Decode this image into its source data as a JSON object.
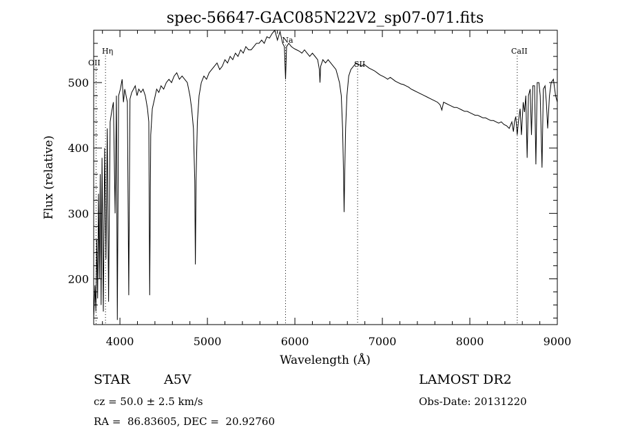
{
  "chart_data": {
    "type": "line",
    "title": "spec-56647-GAC085N22V2_sp07-071.fits",
    "xlabel": "Wavelength (Å)",
    "ylabel": "Flux (relative)",
    "xlim": [
      3700,
      9000
    ],
    "ylim": [
      130,
      580
    ],
    "x_ticks": [
      4000,
      5000,
      6000,
      7000,
      8000,
      9000
    ],
    "y_ticks": [
      200,
      300,
      400,
      500
    ],
    "grid": false,
    "series": [
      {
        "points": [
          [
            3700,
            140
          ],
          [
            3715,
            190
          ],
          [
            3725,
            150
          ],
          [
            3735,
            260
          ],
          [
            3745,
            170
          ],
          [
            3755,
            330
          ],
          [
            3765,
            200
          ],
          [
            3775,
            360
          ],
          [
            3785,
            160
          ],
          [
            3795,
            385
          ],
          [
            3810,
            150
          ],
          [
            3825,
            400
          ],
          [
            3840,
            230
          ],
          [
            3855,
            430
          ],
          [
            3870,
            165
          ],
          [
            3888,
            440
          ],
          [
            3905,
            455
          ],
          [
            3925,
            470
          ],
          [
            3945,
            300
          ],
          [
            3960,
            480
          ],
          [
            3970,
            137
          ],
          [
            3985,
            480
          ],
          [
            4005,
            490
          ],
          [
            4025,
            505
          ],
          [
            4040,
            470
          ],
          [
            4055,
            490
          ],
          [
            4070,
            480
          ],
          [
            4085,
            470
          ],
          [
            4101,
            175
          ],
          [
            4115,
            475
          ],
          [
            4135,
            485
          ],
          [
            4155,
            490
          ],
          [
            4175,
            495
          ],
          [
            4195,
            480
          ],
          [
            4215,
            490
          ],
          [
            4240,
            485
          ],
          [
            4265,
            490
          ],
          [
            4290,
            480
          ],
          [
            4315,
            460
          ],
          [
            4330,
            440
          ],
          [
            4340,
            175
          ],
          [
            4352,
            420
          ],
          [
            4370,
            460
          ],
          [
            4395,
            475
          ],
          [
            4420,
            490
          ],
          [
            4445,
            485
          ],
          [
            4470,
            495
          ],
          [
            4500,
            490
          ],
          [
            4530,
            500
          ],
          [
            4560,
            505
          ],
          [
            4590,
            500
          ],
          [
            4620,
            510
          ],
          [
            4650,
            515
          ],
          [
            4680,
            505
          ],
          [
            4710,
            510
          ],
          [
            4740,
            505
          ],
          [
            4770,
            500
          ],
          [
            4800,
            480
          ],
          [
            4820,
            460
          ],
          [
            4840,
            430
          ],
          [
            4855,
            350
          ],
          [
            4862,
            222
          ],
          [
            4870,
            350
          ],
          [
            4885,
            440
          ],
          [
            4905,
            480
          ],
          [
            4930,
            500
          ],
          [
            4960,
            510
          ],
          [
            4990,
            505
          ],
          [
            5020,
            515
          ],
          [
            5050,
            520
          ],
          [
            5080,
            525
          ],
          [
            5110,
            530
          ],
          [
            5140,
            520
          ],
          [
            5170,
            525
          ],
          [
            5200,
            535
          ],
          [
            5230,
            530
          ],
          [
            5260,
            540
          ],
          [
            5290,
            535
          ],
          [
            5320,
            545
          ],
          [
            5350,
            540
          ],
          [
            5380,
            550
          ],
          [
            5410,
            545
          ],
          [
            5440,
            555
          ],
          [
            5470,
            550
          ],
          [
            5500,
            550
          ],
          [
            5530,
            555
          ],
          [
            5560,
            560
          ],
          [
            5590,
            560
          ],
          [
            5620,
            565
          ],
          [
            5650,
            560
          ],
          [
            5680,
            570
          ],
          [
            5710,
            568
          ],
          [
            5740,
            575
          ],
          [
            5770,
            580
          ],
          [
            5800,
            565
          ],
          [
            5830,
            578
          ],
          [
            5860,
            560
          ],
          [
            5880,
            555
          ],
          [
            5893,
            505
          ],
          [
            5905,
            555
          ],
          [
            5930,
            560
          ],
          [
            5960,
            555
          ],
          [
            5990,
            552
          ],
          [
            6020,
            550
          ],
          [
            6050,
            548
          ],
          [
            6080,
            545
          ],
          [
            6110,
            550
          ],
          [
            6140,
            545
          ],
          [
            6170,
            540
          ],
          [
            6200,
            545
          ],
          [
            6230,
            540
          ],
          [
            6260,
            535
          ],
          [
            6280,
            520
          ],
          [
            6287,
            500
          ],
          [
            6295,
            525
          ],
          [
            6320,
            535
          ],
          [
            6350,
            530
          ],
          [
            6380,
            535
          ],
          [
            6410,
            530
          ],
          [
            6440,
            525
          ],
          [
            6470,
            520
          ],
          [
            6490,
            510
          ],
          [
            6510,
            500
          ],
          [
            6530,
            480
          ],
          [
            6545,
            430
          ],
          [
            6556,
            360
          ],
          [
            6563,
            302
          ],
          [
            6570,
            360
          ],
          [
            6580,
            430
          ],
          [
            6595,
            480
          ],
          [
            6615,
            510
          ],
          [
            6640,
            520
          ],
          [
            6670,
            525
          ],
          [
            6700,
            530
          ],
          [
            6730,
            528
          ],
          [
            6760,
            525
          ],
          [
            6790,
            528
          ],
          [
            6820,
            525
          ],
          [
            6850,
            522
          ],
          [
            6880,
            520
          ],
          [
            6910,
            518
          ],
          [
            6940,
            515
          ],
          [
            6970,
            512
          ],
          [
            7000,
            510
          ],
          [
            7030,
            508
          ],
          [
            7060,
            505
          ],
          [
            7090,
            508
          ],
          [
            7120,
            505
          ],
          [
            7150,
            502
          ],
          [
            7180,
            500
          ],
          [
            7210,
            498
          ],
          [
            7240,
            497
          ],
          [
            7270,
            495
          ],
          [
            7300,
            493
          ],
          [
            7330,
            490
          ],
          [
            7360,
            488
          ],
          [
            7390,
            486
          ],
          [
            7420,
            484
          ],
          [
            7450,
            482
          ],
          [
            7480,
            480
          ],
          [
            7510,
            478
          ],
          [
            7540,
            476
          ],
          [
            7570,
            474
          ],
          [
            7600,
            472
          ],
          [
            7630,
            470
          ],
          [
            7660,
            466
          ],
          [
            7680,
            458
          ],
          [
            7700,
            470
          ],
          [
            7730,
            468
          ],
          [
            7760,
            466
          ],
          [
            7790,
            464
          ],
          [
            7820,
            462
          ],
          [
            7850,
            462
          ],
          [
            7880,
            460
          ],
          [
            7910,
            458
          ],
          [
            7940,
            456
          ],
          [
            7970,
            456
          ],
          [
            8000,
            454
          ],
          [
            8030,
            452
          ],
          [
            8060,
            450
          ],
          [
            8090,
            450
          ],
          [
            8120,
            448
          ],
          [
            8150,
            446
          ],
          [
            8180,
            446
          ],
          [
            8210,
            444
          ],
          [
            8240,
            442
          ],
          [
            8270,
            442
          ],
          [
            8300,
            440
          ],
          [
            8330,
            438
          ],
          [
            8360,
            440
          ],
          [
            8390,
            436
          ],
          [
            8420,
            434
          ],
          [
            8450,
            430
          ],
          [
            8480,
            440
          ],
          [
            8498,
            425
          ],
          [
            8510,
            440
          ],
          [
            8525,
            448
          ],
          [
            8542,
            420
          ],
          [
            8555,
            440
          ],
          [
            8575,
            460
          ],
          [
            8590,
            420
          ],
          [
            8610,
            470
          ],
          [
            8625,
            455
          ],
          [
            8640,
            480
          ],
          [
            8655,
            385
          ],
          [
            8670,
            480
          ],
          [
            8690,
            490
          ],
          [
            8705,
            420
          ],
          [
            8720,
            495
          ],
          [
            8740,
            495
          ],
          [
            8755,
            375
          ],
          [
            8770,
            500
          ],
          [
            8790,
            500
          ],
          [
            8805,
            480
          ],
          [
            8825,
            370
          ],
          [
            8840,
            490
          ],
          [
            8860,
            495
          ],
          [
            8875,
            470
          ],
          [
            8890,
            430
          ],
          [
            8910,
            480
          ],
          [
            8930,
            500
          ],
          [
            8955,
            505
          ],
          [
            8980,
            480
          ],
          [
            9000,
            470
          ]
        ]
      }
    ],
    "annotations": [
      {
        "label": "OII",
        "x": 3727
      },
      {
        "label": "Hη",
        "x": 3835
      },
      {
        "label": "Na",
        "x": 5893
      },
      {
        "label": "SII",
        "x": 6717
      },
      {
        "label": "CaII",
        "x": 8542
      }
    ]
  },
  "info": {
    "object_class": "STAR",
    "subclass": "A5V",
    "survey": "LAMOST DR2",
    "cz": "cz = 50.0 ± 2.5 km/s",
    "obs_date": "Obs-Date: 20131220",
    "coords": "RA =  86.83605, DEC =  20.92760"
  }
}
